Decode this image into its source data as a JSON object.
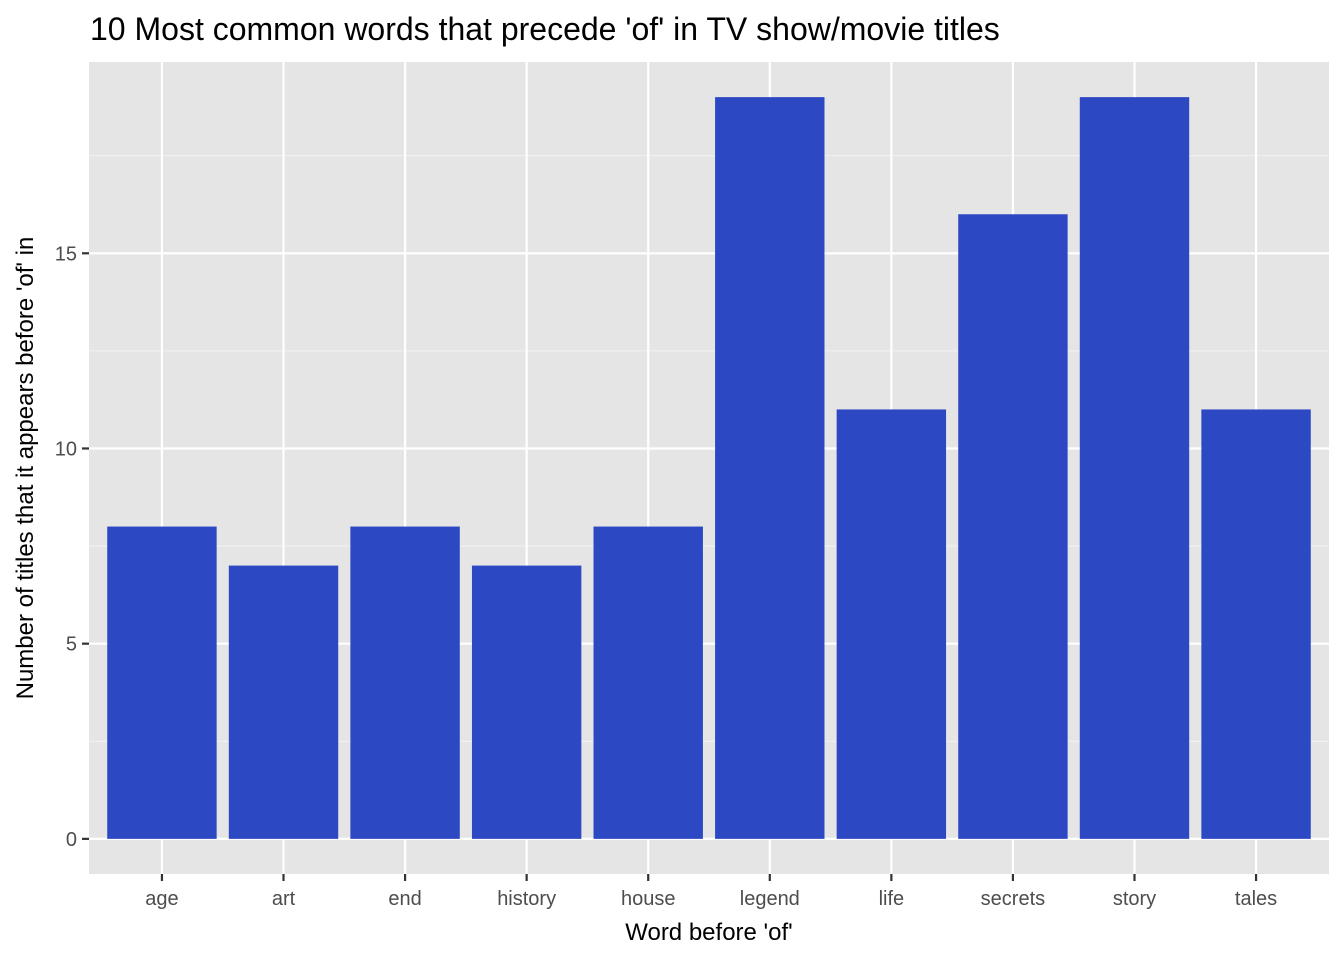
{
  "chart_data": {
    "type": "bar",
    "title": "10 Most common words that precede 'of' in TV show/movie titles",
    "xlabel": "Word before 'of'",
    "ylabel": "Number of titles that it appears before 'of' in",
    "categories": [
      "age",
      "art",
      "end",
      "history",
      "house",
      "legend",
      "life",
      "secrets",
      "story",
      "tales"
    ],
    "values": [
      8,
      7,
      8,
      7,
      8,
      19,
      11,
      16,
      19,
      11
    ],
    "ylim": [
      -0.9,
      19.9
    ],
    "yticks": [
      0,
      5,
      10,
      15
    ],
    "ytick_labels": [
      "0",
      "5",
      "10",
      "15"
    ],
    "grid": true,
    "legend": "none",
    "colors": {
      "bar": "#2D48C3",
      "panel_background": "#E5E5E5",
      "grid_major": "#FFFFFF",
      "grid_minor": "#F2F2F2",
      "tick_text": "#4D4D4D",
      "tick_mark": "#333333"
    }
  }
}
